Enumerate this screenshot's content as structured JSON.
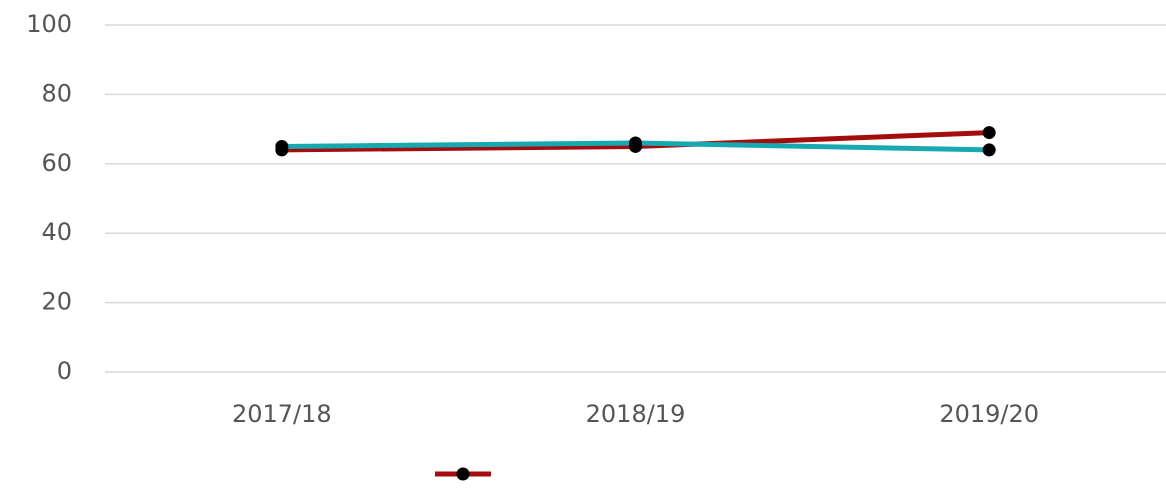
{
  "chart_data": {
    "type": "line",
    "categories": [
      "2017/18",
      "2018/19",
      "2019/20"
    ],
    "series": [
      {
        "color": "#a30d0d",
        "values": [
          64,
          65,
          69
        ]
      },
      {
        "color": "#17a9b1",
        "values": [
          65,
          66,
          64
        ]
      }
    ],
    "marker_color": "#000000",
    "ylim": [
      0,
      100
    ],
    "yticks": [
      0,
      20,
      40,
      60,
      80,
      100
    ],
    "grid": true,
    "legend": "bottom"
  }
}
